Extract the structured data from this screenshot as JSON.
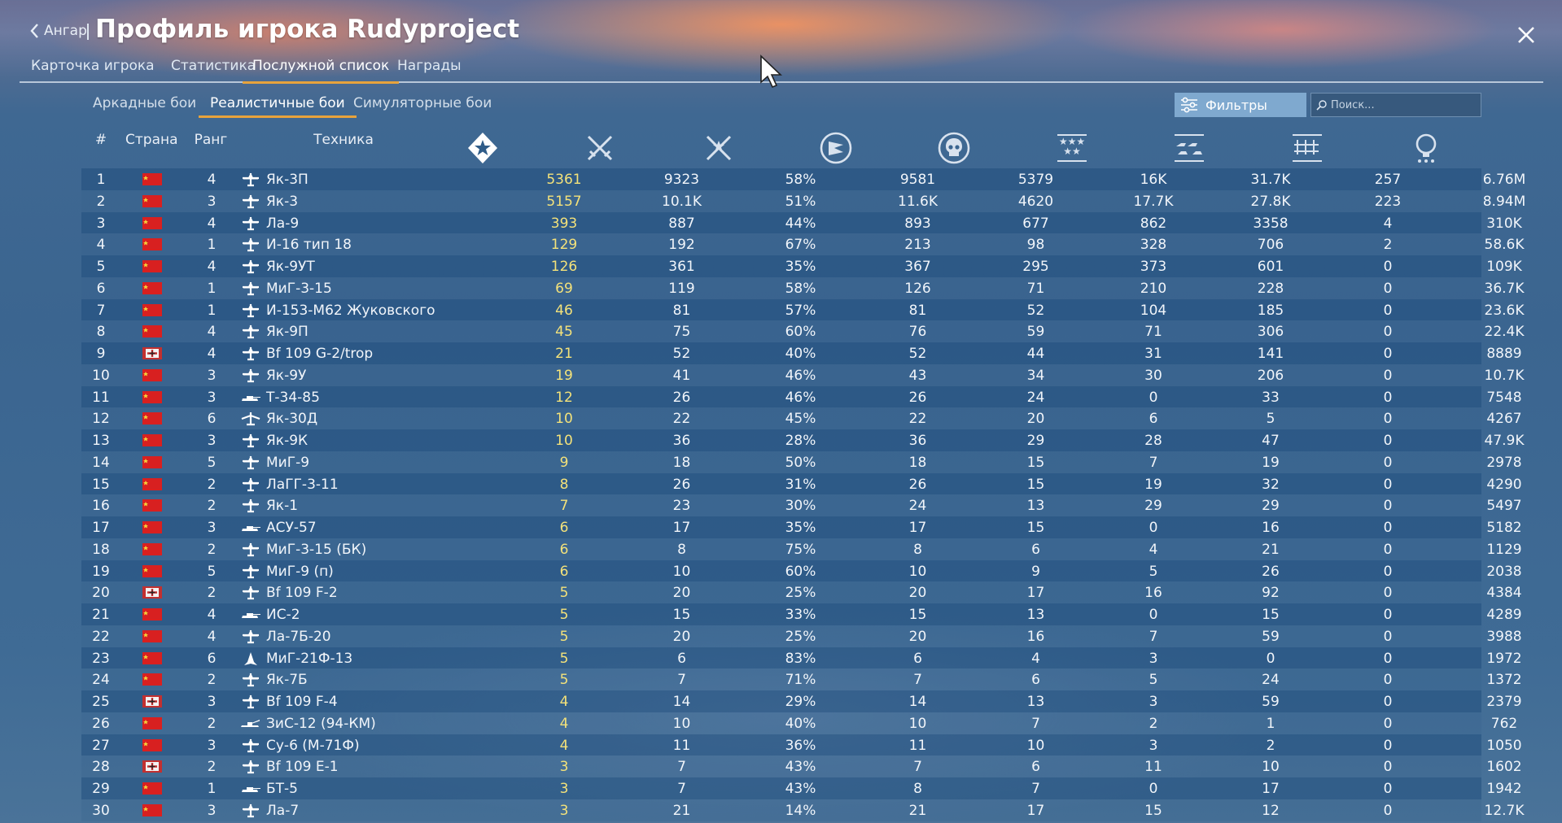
{
  "header": {
    "back_label": "Ангар",
    "title": "Профиль игрока Rudyproject"
  },
  "tabs": [
    {
      "label": "Карточка игрока",
      "active": false
    },
    {
      "label": "Статистика",
      "active": false
    },
    {
      "label": "Послужной список",
      "active": true
    },
    {
      "label": "Награды",
      "active": false
    }
  ],
  "subtabs": [
    {
      "label": "Аркадные бои",
      "active": false
    },
    {
      "label": "Реалистичные бои",
      "active": true
    },
    {
      "label": "Симуляторные бои",
      "active": false
    }
  ],
  "toolbar": {
    "filters_label": "Фильтры",
    "search_placeholder": "Поиск..."
  },
  "columns": {
    "num": "#",
    "country": "Страна",
    "rank": "Ранг",
    "vehicle": "Техника",
    "icons": [
      "victories-icon",
      "battles-icon",
      "win-rate-icon",
      "respawns-icon",
      "deaths-icon",
      "air-kills-icon",
      "ground-kills-icon",
      "naval-kills-icon",
      "experience-icon"
    ]
  },
  "colors": {
    "accent": "#e8a33c",
    "highlight_value": "#f4e27a",
    "ussr_flag": "#d82020",
    "germany_flag": "#c23030"
  },
  "rows": [
    {
      "num": "1",
      "country": "ussr",
      "rank": "4",
      "type": "plane",
      "name": "Як-3П",
      "v": [
        "5361",
        "9323",
        "58%",
        "9581",
        "5379",
        "16K",
        "31.7K",
        "257",
        "6.76M"
      ]
    },
    {
      "num": "2",
      "country": "ussr",
      "rank": "3",
      "type": "plane",
      "name": "Як-3",
      "v": [
        "5157",
        "10.1K",
        "51%",
        "11.6K",
        "4620",
        "17.7K",
        "27.8K",
        "223",
        "8.94M"
      ]
    },
    {
      "num": "3",
      "country": "ussr",
      "rank": "4",
      "type": "plane",
      "name": "Ла-9",
      "v": [
        "393",
        "887",
        "44%",
        "893",
        "677",
        "862",
        "3358",
        "4",
        "310K"
      ]
    },
    {
      "num": "4",
      "country": "ussr",
      "rank": "1",
      "type": "plane",
      "name": "И-16 тип 18",
      "v": [
        "129",
        "192",
        "67%",
        "213",
        "98",
        "328",
        "706",
        "2",
        "58.6K"
      ]
    },
    {
      "num": "5",
      "country": "ussr",
      "rank": "4",
      "type": "plane",
      "name": "Як-9УТ",
      "v": [
        "126",
        "361",
        "35%",
        "367",
        "295",
        "373",
        "601",
        "0",
        "109K"
      ]
    },
    {
      "num": "6",
      "country": "ussr",
      "rank": "1",
      "type": "plane",
      "name": "МиГ-3-15",
      "v": [
        "69",
        "119",
        "58%",
        "126",
        "71",
        "210",
        "228",
        "0",
        "36.7K"
      ]
    },
    {
      "num": "7",
      "country": "ussr",
      "rank": "1",
      "type": "plane",
      "name": "И-153-М62 Жуковского",
      "v": [
        "46",
        "81",
        "57%",
        "81",
        "52",
        "104",
        "185",
        "0",
        "23.6K"
      ]
    },
    {
      "num": "8",
      "country": "ussr",
      "rank": "4",
      "type": "plane",
      "name": "Як-9П",
      "v": [
        "45",
        "75",
        "60%",
        "76",
        "59",
        "71",
        "306",
        "0",
        "22.4K"
      ]
    },
    {
      "num": "9",
      "country": "germany",
      "rank": "4",
      "type": "plane",
      "name": "Bf 109 G-2/trop",
      "v": [
        "21",
        "52",
        "40%",
        "52",
        "44",
        "31",
        "141",
        "0",
        "8889"
      ]
    },
    {
      "num": "10",
      "country": "ussr",
      "rank": "3",
      "type": "plane",
      "name": "Як-9У",
      "v": [
        "19",
        "41",
        "46%",
        "43",
        "34",
        "30",
        "206",
        "0",
        "10.7K"
      ]
    },
    {
      "num": "11",
      "country": "ussr",
      "rank": "3",
      "type": "tank",
      "name": "Т-34-85",
      "v": [
        "12",
        "26",
        "46%",
        "26",
        "24",
        "0",
        "33",
        "0",
        "7548"
      ]
    },
    {
      "num": "12",
      "country": "ussr",
      "rank": "6",
      "type": "bomber",
      "name": "Як-30Д",
      "v": [
        "10",
        "22",
        "45%",
        "22",
        "20",
        "6",
        "5",
        "0",
        "4267"
      ]
    },
    {
      "num": "13",
      "country": "ussr",
      "rank": "3",
      "type": "plane",
      "name": "Як-9К",
      "v": [
        "10",
        "36",
        "28%",
        "36",
        "29",
        "28",
        "47",
        "0",
        "47.9K"
      ]
    },
    {
      "num": "14",
      "country": "ussr",
      "rank": "5",
      "type": "plane",
      "name": "МиГ-9",
      "v": [
        "9",
        "18",
        "50%",
        "18",
        "15",
        "7",
        "19",
        "0",
        "2978"
      ]
    },
    {
      "num": "15",
      "country": "ussr",
      "rank": "2",
      "type": "plane",
      "name": "ЛаГГ-3-11",
      "v": [
        "8",
        "26",
        "31%",
        "26",
        "15",
        "19",
        "32",
        "0",
        "4290"
      ]
    },
    {
      "num": "16",
      "country": "ussr",
      "rank": "2",
      "type": "plane",
      "name": "Як-1",
      "v": [
        "7",
        "23",
        "30%",
        "24",
        "13",
        "29",
        "29",
        "0",
        "5497"
      ]
    },
    {
      "num": "17",
      "country": "ussr",
      "rank": "3",
      "type": "tank",
      "name": "АСУ-57",
      "v": [
        "6",
        "17",
        "35%",
        "17",
        "15",
        "0",
        "16",
        "0",
        "5182"
      ]
    },
    {
      "num": "18",
      "country": "ussr",
      "rank": "2",
      "type": "plane",
      "name": "МиГ-3-15 (БК)",
      "v": [
        "6",
        "8",
        "75%",
        "8",
        "6",
        "4",
        "21",
        "0",
        "1129"
      ]
    },
    {
      "num": "19",
      "country": "ussr",
      "rank": "5",
      "type": "plane",
      "name": "МиГ-9 (п)",
      "v": [
        "6",
        "10",
        "60%",
        "10",
        "9",
        "5",
        "26",
        "0",
        "2038"
      ]
    },
    {
      "num": "20",
      "country": "germany",
      "rank": "2",
      "type": "plane",
      "name": "Bf 109 F-2",
      "v": [
        "5",
        "20",
        "25%",
        "20",
        "17",
        "16",
        "92",
        "0",
        "4384"
      ]
    },
    {
      "num": "21",
      "country": "ussr",
      "rank": "4",
      "type": "tank",
      "name": "ИС-2",
      "v": [
        "5",
        "15",
        "33%",
        "15",
        "13",
        "0",
        "15",
        "0",
        "4289"
      ]
    },
    {
      "num": "22",
      "country": "ussr",
      "rank": "4",
      "type": "plane",
      "name": "Ла-7Б-20",
      "v": [
        "5",
        "20",
        "25%",
        "20",
        "16",
        "7",
        "59",
        "0",
        "3988"
      ]
    },
    {
      "num": "23",
      "country": "ussr",
      "rank": "6",
      "type": "jet",
      "name": "МиГ-21Ф-13",
      "v": [
        "5",
        "6",
        "83%",
        "6",
        "4",
        "3",
        "0",
        "0",
        "1972"
      ]
    },
    {
      "num": "24",
      "country": "ussr",
      "rank": "2",
      "type": "plane",
      "name": "Як-7Б",
      "v": [
        "5",
        "7",
        "71%",
        "7",
        "6",
        "5",
        "24",
        "0",
        "1372"
      ]
    },
    {
      "num": "25",
      "country": "germany",
      "rank": "3",
      "type": "plane",
      "name": "Bf 109 F-4",
      "v": [
        "4",
        "14",
        "29%",
        "14",
        "13",
        "3",
        "59",
        "0",
        "2379"
      ]
    },
    {
      "num": "26",
      "country": "ussr",
      "rank": "2",
      "type": "spaa",
      "name": "ЗиС-12 (94-КМ)",
      "v": [
        "4",
        "10",
        "40%",
        "10",
        "7",
        "2",
        "1",
        "0",
        "762"
      ]
    },
    {
      "num": "27",
      "country": "ussr",
      "rank": "3",
      "type": "plane",
      "name": "Су-6 (М-71Ф)",
      "v": [
        "4",
        "11",
        "36%",
        "11",
        "10",
        "3",
        "2",
        "0",
        "1050"
      ]
    },
    {
      "num": "28",
      "country": "germany",
      "rank": "2",
      "type": "plane",
      "name": "Bf 109 E-1",
      "v": [
        "3",
        "7",
        "43%",
        "7",
        "6",
        "11",
        "10",
        "0",
        "1602"
      ]
    },
    {
      "num": "29",
      "country": "ussr",
      "rank": "1",
      "type": "tank",
      "name": "БТ-5",
      "v": [
        "3",
        "7",
        "43%",
        "8",
        "7",
        "0",
        "17",
        "0",
        "1942"
      ]
    },
    {
      "num": "30",
      "country": "ussr",
      "rank": "3",
      "type": "plane",
      "name": "Ла-7",
      "v": [
        "3",
        "21",
        "14%",
        "21",
        "17",
        "15",
        "12",
        "0",
        "12.7K"
      ]
    }
  ]
}
